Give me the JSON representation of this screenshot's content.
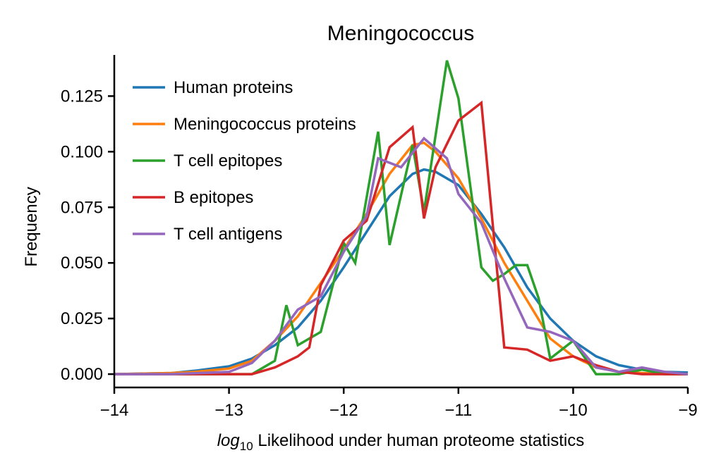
{
  "chart_data": {
    "type": "line",
    "title": "Meningococcus",
    "xlabel_italic": "log",
    "xlabel_sub": "10",
    "xlabel_rest": " Likelihood under human proteome statistics",
    "ylabel": "Frequency",
    "xlim": [
      -14,
      -9
    ],
    "ylim": [
      -0.006,
      0.1435
    ],
    "xticks": [
      -14,
      -13,
      -12,
      -11,
      -10,
      -9
    ],
    "xtick_labels": [
      "−14",
      "−13",
      "−12",
      "−11",
      "−10",
      "−9"
    ],
    "yticks": [
      0.0,
      0.025,
      0.05,
      0.075,
      0.1,
      0.125
    ],
    "ytick_labels": [
      "0.000",
      "0.025",
      "0.050",
      "0.075",
      "0.100",
      "0.125"
    ],
    "legend_position": "top-left",
    "series": [
      {
        "name": "Human proteins",
        "color": "#1f77b4",
        "x": [
          -14.0,
          -13.5,
          -13.3,
          -13.0,
          -12.8,
          -12.6,
          -12.4,
          -12.2,
          -12.0,
          -11.8,
          -11.6,
          -11.4,
          -11.3,
          -11.2,
          -11.0,
          -10.8,
          -10.6,
          -10.4,
          -10.2,
          -10.0,
          -9.8,
          -9.6,
          -9.4,
          -9.2,
          -9.0
        ],
        "y": [
          0.0,
          0.0005,
          0.0015,
          0.0035,
          0.007,
          0.013,
          0.021,
          0.033,
          0.048,
          0.064,
          0.08,
          0.09,
          0.092,
          0.091,
          0.085,
          0.072,
          0.057,
          0.039,
          0.025,
          0.015,
          0.008,
          0.004,
          0.002,
          0.001,
          0.0007
        ]
      },
      {
        "name": "Meningococcus proteins",
        "color": "#ff7f0e",
        "x": [
          -14.0,
          -13.5,
          -13.3,
          -13.0,
          -12.8,
          -12.6,
          -12.4,
          -12.2,
          -12.0,
          -11.8,
          -11.6,
          -11.4,
          -11.3,
          -11.2,
          -11.0,
          -10.8,
          -10.6,
          -10.4,
          -10.2,
          -10.0,
          -9.8,
          -9.6,
          -9.4,
          -9.2,
          -9.0
        ],
        "y": [
          0.0,
          0.0005,
          0.001,
          0.0025,
          0.006,
          0.015,
          0.026,
          0.041,
          0.056,
          0.072,
          0.09,
          0.103,
          0.104,
          0.1,
          0.088,
          0.07,
          0.05,
          0.033,
          0.016,
          0.008,
          0.003,
          0.001,
          0.0005,
          0.0,
          0.0
        ]
      },
      {
        "name": "T cell epitopes",
        "color": "#2ca02c",
        "x": [
          -14.0,
          -13.5,
          -13.0,
          -12.8,
          -12.6,
          -12.5,
          -12.4,
          -12.2,
          -12.0,
          -11.9,
          -11.7,
          -11.6,
          -11.4,
          -11.3,
          -11.1,
          -11.0,
          -10.8,
          -10.7,
          -10.6,
          -10.5,
          -10.4,
          -10.3,
          -10.2,
          -10.0,
          -9.8,
          -9.6,
          -9.4,
          -9.2,
          -9.0
        ],
        "y": [
          0.0,
          0.0,
          0.0,
          0.0,
          0.006,
          0.031,
          0.013,
          0.019,
          0.059,
          0.05,
          0.109,
          0.058,
          0.103,
          0.073,
          0.141,
          0.124,
          0.048,
          0.042,
          0.045,
          0.049,
          0.049,
          0.034,
          0.007,
          0.015,
          0.0,
          0.0,
          0.002,
          0.0,
          0.0
        ]
      },
      {
        "name": "B epitopes",
        "color": "#d62728",
        "x": [
          -14.0,
          -13.5,
          -13.0,
          -12.8,
          -12.6,
          -12.4,
          -12.3,
          -12.2,
          -12.0,
          -11.8,
          -11.6,
          -11.4,
          -11.3,
          -11.2,
          -11.0,
          -10.8,
          -10.6,
          -10.4,
          -10.2,
          -10.0,
          -9.8,
          -9.6,
          -9.4,
          -9.2,
          -9.0
        ],
        "y": [
          0.0,
          0.0,
          0.0,
          0.0,
          0.003,
          0.008,
          0.012,
          0.04,
          0.06,
          0.069,
          0.102,
          0.111,
          0.07,
          0.093,
          0.114,
          0.122,
          0.012,
          0.011,
          0.006,
          0.008,
          0.004,
          0.001,
          0.0,
          0.0,
          0.0
        ]
      },
      {
        "name": "T cell antigens",
        "color": "#9467bd",
        "x": [
          -14.0,
          -13.5,
          -13.0,
          -12.8,
          -12.6,
          -12.4,
          -12.2,
          -12.0,
          -11.8,
          -11.7,
          -11.5,
          -11.3,
          -11.1,
          -11.0,
          -10.8,
          -10.6,
          -10.4,
          -10.2,
          -10.0,
          -9.8,
          -9.6,
          -9.4,
          -9.2,
          -9.0
        ],
        "y": [
          0.0,
          0.0,
          0.001,
          0.005,
          0.015,
          0.029,
          0.035,
          0.055,
          0.071,
          0.097,
          0.093,
          0.106,
          0.097,
          0.081,
          0.068,
          0.043,
          0.021,
          0.019,
          0.015,
          0.003,
          0.001,
          0.003,
          0.001,
          0.0
        ]
      }
    ]
  }
}
